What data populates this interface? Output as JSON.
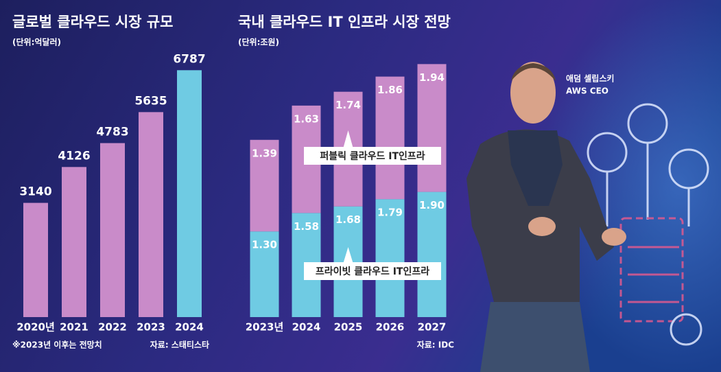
{
  "chart_data": [
    {
      "type": "bar",
      "title": "글로벌 클라우드 시장 규모",
      "subtitle": "(단위:억달러)",
      "categories": [
        "2020년",
        "2021",
        "2022",
        "2023",
        "2024"
      ],
      "values": [
        3140,
        4126,
        4783,
        5635,
        6787
      ],
      "colors": [
        "#c98bc9",
        "#c98bc9",
        "#c98bc9",
        "#c98bc9",
        "#6fcbe3"
      ],
      "ylim": [
        0,
        7000
      ],
      "note": "※2023년 이후는 전망치",
      "source": "자료: 스태티스타"
    },
    {
      "type": "stacked_bar",
      "title": "국내 클라우드 IT 인프라 시장 전망",
      "subtitle": "(단위:조원)",
      "categories": [
        "2023년",
        "2024",
        "2025",
        "2026",
        "2027"
      ],
      "series": [
        {
          "name": "프라이빗 클라우드 IT인프라",
          "color": "#6fcbe3",
          "values": [
            1.3,
            1.58,
            1.68,
            1.79,
            1.9
          ],
          "value_labels": [
            "1.30",
            "1.58",
            "1.68",
            "1.79",
            "1.90"
          ]
        },
        {
          "name": "퍼블릭 클라우드 IT인프라",
          "color": "#c98bc9",
          "values": [
            1.39,
            1.63,
            1.74,
            1.86,
            1.94
          ],
          "value_labels": [
            "1.39",
            "1.63",
            "1.74",
            "1.86",
            "1.94"
          ]
        }
      ],
      "ylim": [
        0,
        4
      ],
      "source": "자료: IDC"
    }
  ],
  "photo_caption": {
    "name": "애덤 셀립스키",
    "role": "AWS CEO"
  }
}
